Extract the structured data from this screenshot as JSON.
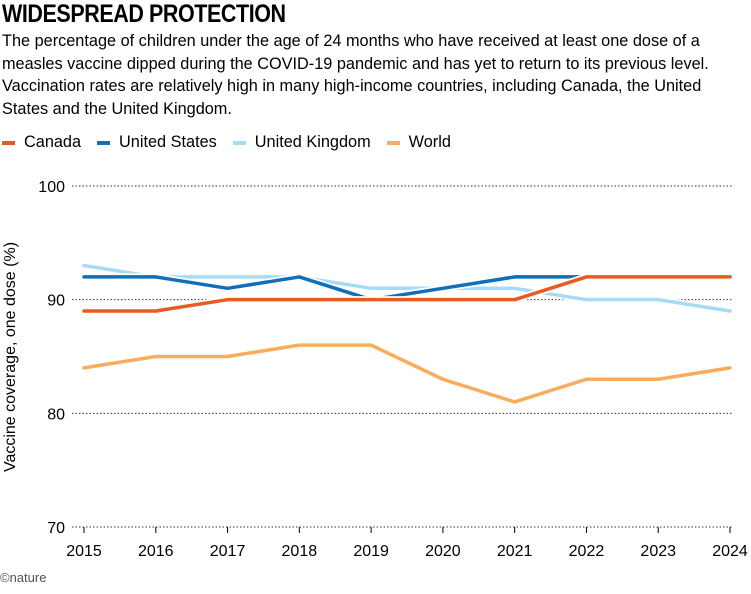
{
  "title": "WIDESPREAD PROTECTION",
  "subtitle": "The percentage of children under the age of 24 months who have received at least one dose of a measles vaccine dipped during the COVID-19 pandemic and has yet to return to its previous level. Vaccination rates are relatively high in many high-income countries, including Canada, the United States and the United Kingdom.",
  "footer": "©nature",
  "chart_data": {
    "type": "line",
    "title": "WIDESPREAD PROTECTION",
    "xlabel": "",
    "ylabel": "Vaccine coverage, one dose (%)",
    "x": [
      2015,
      2016,
      2017,
      2018,
      2019,
      2020,
      2021,
      2022,
      2023,
      2024
    ],
    "ylim": [
      70,
      100
    ],
    "yticks": [
      70,
      80,
      90,
      100
    ],
    "grid": true,
    "legend": "top-left",
    "series": [
      {
        "name": "United Kingdom",
        "color": "#a7dbf5",
        "values": [
          93,
          92,
          92,
          92,
          91,
          91,
          91,
          90,
          90,
          89
        ]
      },
      {
        "name": "United States",
        "color": "#0f6fb9",
        "values": [
          92,
          92,
          91,
          92,
          90,
          91,
          92,
          92,
          92,
          92
        ]
      },
      {
        "name": "World",
        "color": "#f9ad5c",
        "values": [
          84,
          85,
          85,
          86,
          86,
          83,
          81,
          83,
          83,
          84
        ]
      },
      {
        "name": "Canada",
        "color": "#e85a24",
        "values": [
          89,
          89,
          90,
          90,
          90,
          90,
          90,
          92,
          92,
          92
        ]
      }
    ],
    "legend_order": [
      "Canada",
      "United States",
      "United Kingdom",
      "World"
    ]
  }
}
